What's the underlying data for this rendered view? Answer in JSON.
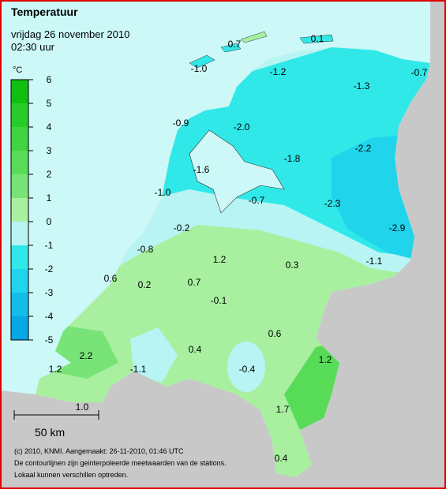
{
  "header": {
    "title": "Temperatuur",
    "date": "vrijdag 26 november 2010",
    "time": "02:30 uur"
  },
  "legend": {
    "unit": "°C",
    "ticks": [
      6,
      5,
      4,
      3,
      2,
      1,
      0,
      -1,
      -2,
      -3,
      -4,
      -5
    ],
    "colors": [
      "#10c010",
      "#28cc28",
      "#40d440",
      "#58dc58",
      "#78e478",
      "#a8f0a0",
      "#b8f4f4",
      "#30e8e8",
      "#20d4ec",
      "#14bcea",
      "#08a8e4"
    ]
  },
  "map": {
    "readings": [
      "0.7",
      "0.1",
      "-1.0",
      "-1.2",
      "-1.3",
      "-0.7",
      "-0.9",
      "-2.0",
      "-2.2",
      "-1.8",
      "-1.6",
      "-1.0",
      "-0.7",
      "-2.3",
      "-2.9",
      "-0.2",
      "-0.8",
      "1.2",
      "0.3",
      "-1.1",
      "0.6",
      "0.2",
      "0.7",
      "-0.1",
      "0.6",
      "2.2",
      "0.4",
      "1.2",
      "-0.4",
      "1.2",
      "-1.1",
      "1.7",
      "1.0",
      "0.4"
    ],
    "scale": "50 km"
  },
  "footer": {
    "lines": [
      "(c) 2010, KNMI. Aangemaakt: 26-11-2010, 01:46 UTC",
      "De contourlijnen zijn geinterpoleerde meetwaarden van de stations.",
      "Lokaal kunnen verschillen optreden."
    ]
  }
}
